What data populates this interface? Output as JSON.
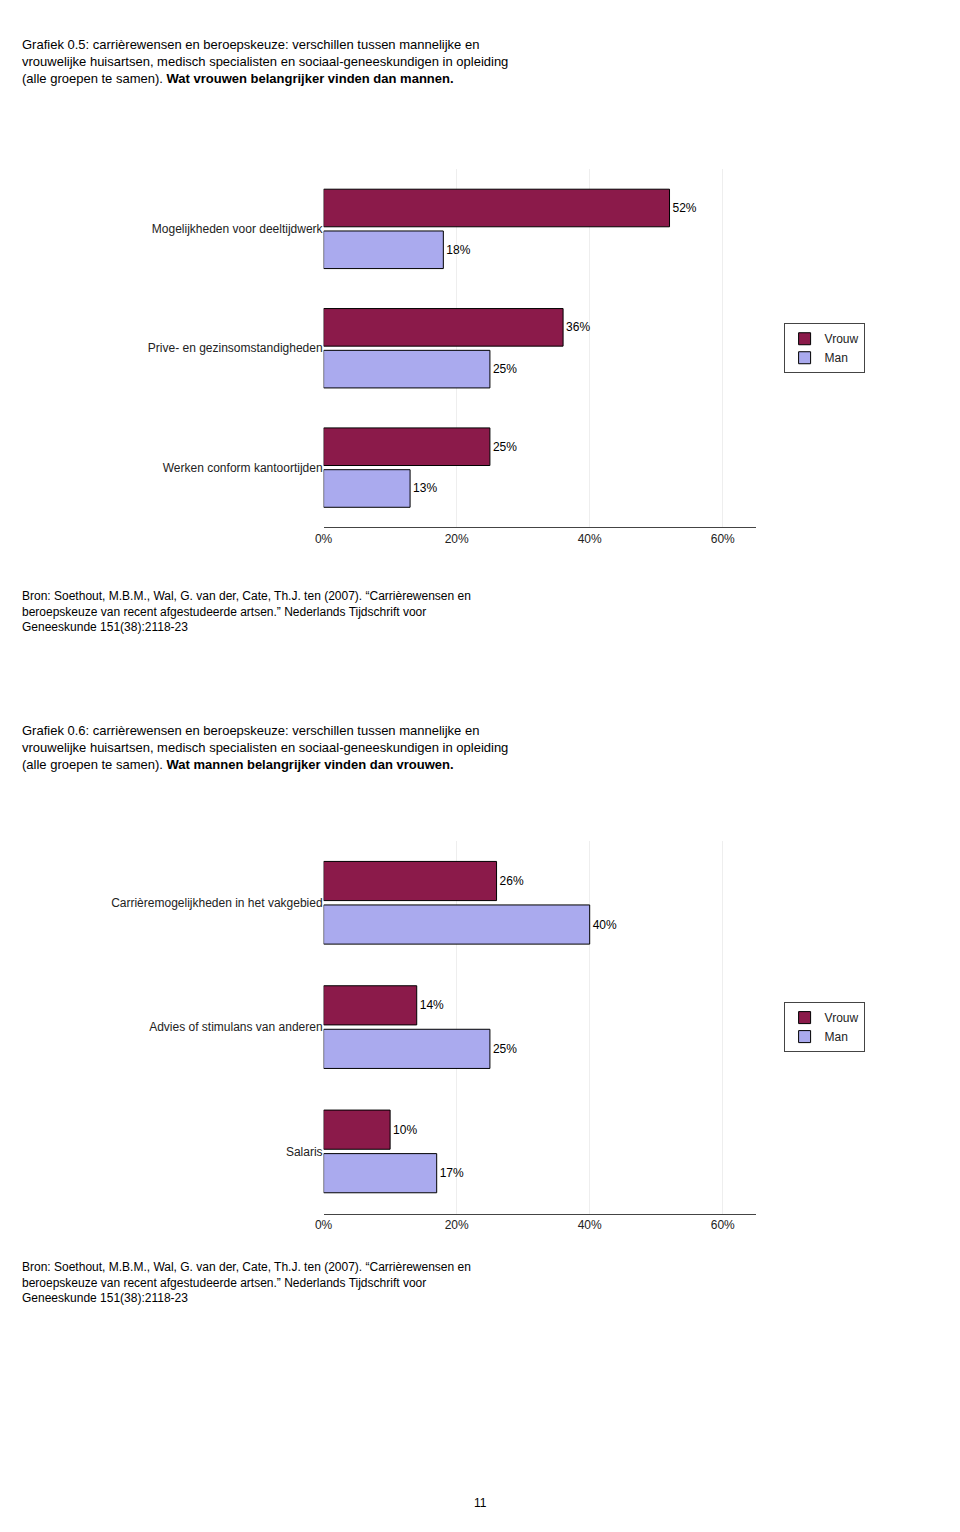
{
  "chart_data": [
    {
      "type": "bar",
      "orientation": "horizontal",
      "title": "Grafiek 0.5: carrièrewensen en beroepskeuze: verschillen tussen mannelijke en\nvrouwelijke huisartsen, medisch specialisten en sociaal-geneeskundigen in opleiding\n(alle groepen te samen).",
      "subtitle": "Wat vrouwen belangrijker vinden dan mannen.",
      "categories": [
        "Mogelijkheden voor deeltijdwerk",
        "Prive- en gezinsomstandigheden",
        "Werken conform kantoortijden"
      ],
      "series": [
        {
          "name": "Vrouw",
          "color": "#8B1A4A",
          "values": [
            52,
            36,
            25
          ],
          "value_labels": [
            "52%",
            "36%",
            "25%"
          ]
        },
        {
          "name": "Man",
          "color": "#AAAAEE",
          "values": [
            18,
            25,
            13
          ],
          "value_labels": [
            "18%",
            "25%",
            "13%"
          ]
        }
      ],
      "xlim": [
        0,
        65
      ],
      "xticks": [
        {
          "value": 0,
          "label": "0%"
        },
        {
          "value": 20,
          "label": "20%"
        },
        {
          "value": 40,
          "label": "40%"
        },
        {
          "value": 60,
          "label": "60%"
        }
      ],
      "grid": true,
      "legend": "right",
      "data_labels": true,
      "annotations": [
        "Bron: Soethout, M.B.M., Wal, G. van der, Cate, Th.J. ten (2007). “Carrièrewensen en\nberoepskeuze van recent afgestudeerde artsen.” Nederlands Tijdschrift voor\nGeneeskunde 151(38):2118-23"
      ]
    },
    {
      "type": "bar",
      "orientation": "horizontal",
      "title": "Grafiek 0.6: carrièrewensen en beroepskeuze: verschillen tussen mannelijke en\nvrouwelijke huisartsen, medisch specialisten en sociaal-geneeskundigen in opleiding\n(alle groepen te samen).",
      "subtitle": "Wat mannen belangrijker vinden dan vrouwen.",
      "categories": [
        "Carrièremogelijkheden in het vakgebied",
        "Advies of stimulans van anderen",
        "Salaris"
      ],
      "series": [
        {
          "name": "Vrouw",
          "color": "#8B1A4A",
          "values": [
            26,
            14,
            10
          ],
          "value_labels": [
            "26%",
            "14%",
            "10%"
          ]
        },
        {
          "name": "Man",
          "color": "#AAAAEE",
          "values": [
            40,
            25,
            17
          ],
          "value_labels": [
            "40%",
            "25%",
            "17%"
          ]
        }
      ],
      "xlim": [
        0,
        65
      ],
      "xticks": [
        {
          "value": 0,
          "label": "0%"
        },
        {
          "value": 20,
          "label": "20%"
        },
        {
          "value": 40,
          "label": "40%"
        },
        {
          "value": 60,
          "label": "60%"
        }
      ],
      "grid": true,
      "legend": "right",
      "data_labels": true,
      "annotations": [
        "Bron: Soethout, M.B.M., Wal, G. van der, Cate, Th.J. ten (2007). “Carrièrewensen en\nberoepskeuze van recent afgestudeerde artsen.” Nederlands Tijdschrift voor\nGeneeskunde 151(38):2118-23",
        "11"
      ]
    }
  ]
}
